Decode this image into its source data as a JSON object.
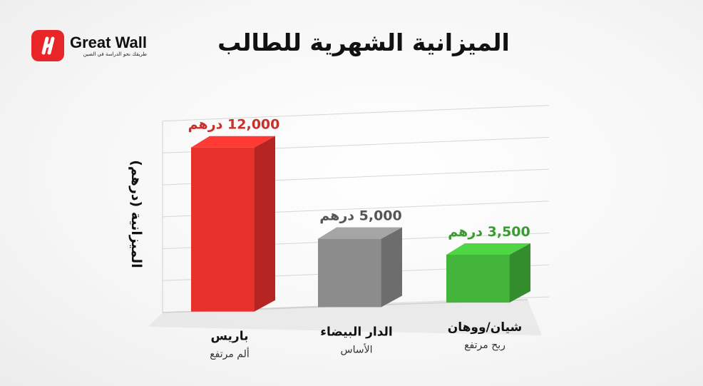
{
  "brand": {
    "name": "Great Wall",
    "tagline": "طريقك نحو الدراسة في الصين"
  },
  "chart_data": {
    "type": "bar",
    "title": "الميزانية الشهرية للطالب",
    "ylabel": "الميزانية (درهم)",
    "xlabel": "",
    "ylim": [
      0,
      14000
    ],
    "grid": true,
    "categories": [
      "باريس",
      "الدار البيضاء",
      "شيان/ووهان"
    ],
    "subtitles": [
      "ألم مرتفع",
      "الأساس",
      "ربح مرتفع"
    ],
    "values": [
      12000,
      5000,
      3500
    ],
    "value_labels": [
      "12,000 درهم",
      "5,000 درهم",
      "3,500 درهم"
    ],
    "colors": [
      "#e8302c",
      "#8c8c8c",
      "#43b53a"
    ],
    "label_colors": [
      "#c8302c",
      "#555555",
      "#3a9b31"
    ]
  }
}
